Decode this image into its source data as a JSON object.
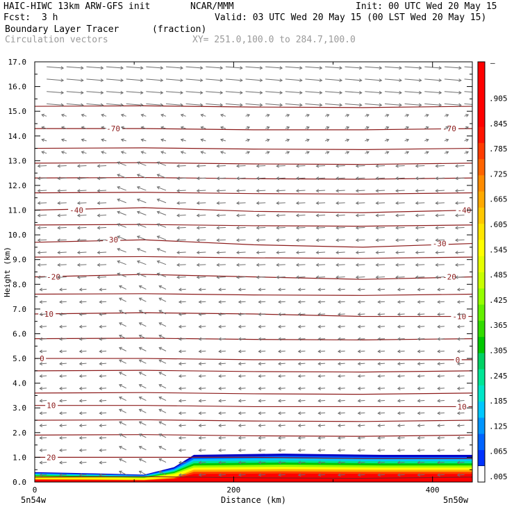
{
  "header": {
    "model_title": "HAIC-HIWC 13km ARW-GFS init",
    "org": "NCAR/MMM",
    "init_time": "Init: 00 UTC Wed 20 May 15",
    "fcst_label": "Fcst:",
    "fcst_value": "3 h",
    "valid_time": "Valid: 03 UTC Wed 20 May 15 (00 LST Wed 20 May 15)",
    "field_name": "Boundary Layer Tracer",
    "field_units": "(fraction)",
    "vector_field": "Circulation vectors",
    "cross_section": "XY= 251.0,100.0 to 284.7,100.0"
  },
  "colors": {
    "contour": "#8b1a1a",
    "vector": "#6e6e6e"
  },
  "chart_data": {
    "type": "heatmap",
    "xlabel": "Distance (km)",
    "ylabel": "Height (km)",
    "xlim": [
      0,
      440
    ],
    "ylim": [
      0,
      17
    ],
    "x_ticks": [
      "0",
      "200",
      "400"
    ],
    "x_end_labels": [
      "5n54w",
      "5n50w"
    ],
    "y_ticks": [
      "0.0",
      "1.0",
      "2.0",
      "3.0",
      "4.0",
      "5.0",
      "6.0",
      "7.0",
      "8.0",
      "9.0",
      "10.0",
      "11.0",
      "12.0",
      "13.0",
      "14.0",
      "15.0",
      "16.0",
      "17.0"
    ],
    "colorbar_labels": [
      ".005",
      ".065",
      ".125",
      ".185",
      ".245",
      ".305",
      ".365",
      ".425",
      ".485",
      ".545",
      ".605",
      ".665",
      ".725",
      ".785",
      ".845",
      ".905"
    ],
    "colorbar_top_label": "–",
    "colorbar_colors": [
      "#0000c8",
      "#0032ff",
      "#0064ff",
      "#0096ff",
      "#00c8ff",
      "#00e6c8",
      "#00e696",
      "#00d264",
      "#00c800",
      "#32dc00",
      "#64f000",
      "#96ff00",
      "#c8ff00",
      "#e6ff00",
      "#ffff00",
      "#ffe600",
      "#ffc800",
      "#ffaa00",
      "#ff8c00",
      "#ff6400",
      "#ff3c00",
      "#ff1400",
      "#ff0000",
      "#ff0000",
      "#ff0000",
      "#ff0000"
    ],
    "temperature_contours": [
      {
        "label": "20",
        "heights": [
          1.0,
          1.0,
          1.0,
          0.95,
          0.95
        ],
        "label_x": [
          12
        ]
      },
      {
        "label": "10",
        "heights": [
          3.1,
          3.1,
          3.05,
          3.05,
          3.05
        ],
        "label_x": [
          12,
          425
        ]
      },
      {
        "label": "0",
        "heights": [
          5.0,
          5.0,
          4.95,
          4.95,
          4.95
        ],
        "label_x": [
          5,
          423
        ]
      },
      {
        "label": "-10",
        "heights": [
          6.8,
          6.85,
          6.8,
          6.7,
          6.7
        ],
        "label_x": [
          5,
          420
        ]
      },
      {
        "label": "-20",
        "heights": [
          8.3,
          8.4,
          8.3,
          8.2,
          8.3
        ],
        "label_x": [
          12,
          410
        ]
      },
      {
        "label": "-30",
        "heights": [
          9.7,
          9.8,
          9.6,
          9.5,
          9.65
        ],
        "label_x": [
          70,
          400
        ]
      },
      {
        "label": "-40",
        "heights": [
          11.0,
          11.1,
          10.95,
          10.9,
          11.0
        ],
        "label_x": [
          35,
          425
        ]
      },
      {
        "label": "-70",
        "heights": [
          14.3,
          14.3,
          14.25,
          14.25,
          14.3
        ],
        "label_x": [
          72,
          410
        ]
      }
    ],
    "unlabeled_contour_heights": [
      0.2,
      1.9,
      2.5,
      3.6,
      4.5,
      5.8,
      7.6,
      9.1,
      10.4,
      11.7,
      12.3,
      12.9,
      13.5,
      15.2
    ],
    "tracer_region": {
      "description_values": "fraction near 0.9 below 0.5 km, decreasing to 0.005 near 1.1 km",
      "top_heights_km": [
        0.4,
        0.35,
        0.3,
        0.6,
        1.1,
        1.15,
        1.1,
        1.1
      ],
      "top_x_km": [
        0,
        60,
        110,
        140,
        160,
        250,
        350,
        440
      ]
    }
  }
}
